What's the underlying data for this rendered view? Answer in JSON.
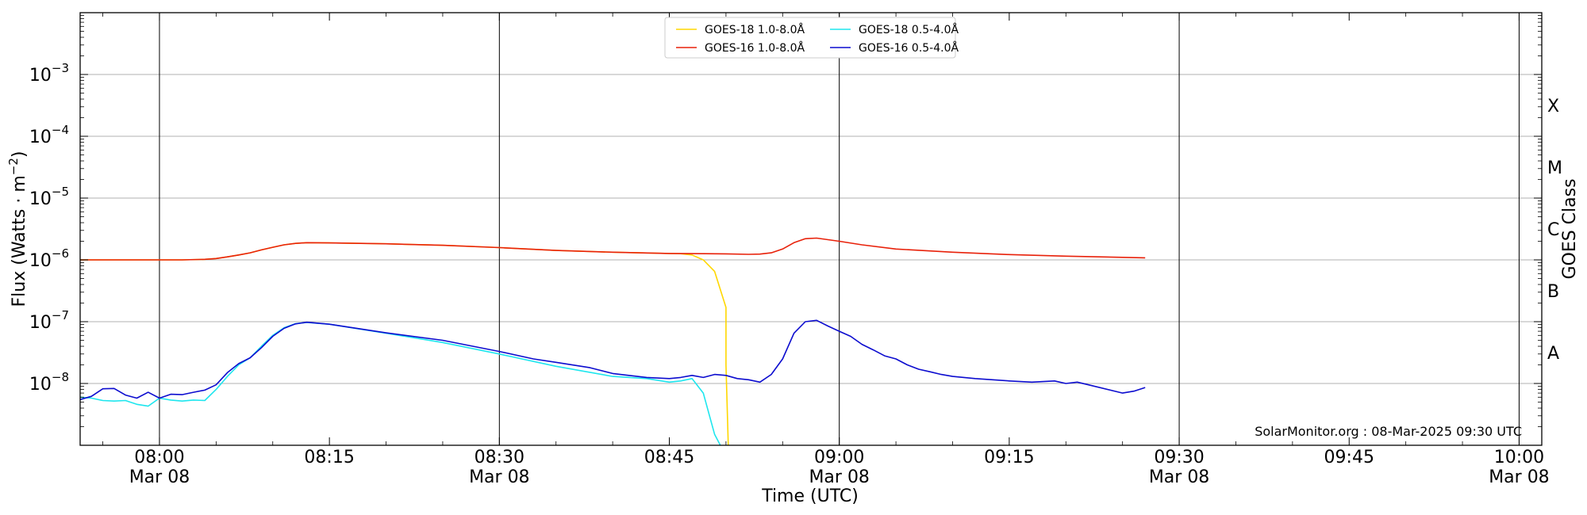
{
  "chart_data": {
    "type": "line",
    "xlabel": "Time (UTC)",
    "ylabel": "Flux (Watts · m",
    "ylabel_sup": "−2",
    "ylabel_close": ")",
    "ylabel_right": "GOES Class",
    "y_scale": "log",
    "ylim": [
      1e-09,
      0.01
    ],
    "xlim": [
      "2025-03-08T07:53",
      "2025-03-08T10:02"
    ],
    "grid": "horizontal gridlines at each decade, vertical lines every 30 minutes",
    "legend_position": "top-center",
    "credit": "SolarMonitor.org : 08-Mar-2025 09:30 UTC",
    "y_ticks": [
      {
        "value": 1e-08,
        "base": "10",
        "exp": "−8"
      },
      {
        "value": 1e-07,
        "base": "10",
        "exp": "−7"
      },
      {
        "value": 1e-06,
        "base": "10",
        "exp": "−6"
      },
      {
        "value": 1e-05,
        "base": "10",
        "exp": "−5"
      },
      {
        "value": 0.0001,
        "base": "10",
        "exp": "−4"
      },
      {
        "value": 0.001,
        "base": "10",
        "exp": "−3"
      }
    ],
    "class_labels": [
      {
        "label": "A",
        "value": 3.16e-08
      },
      {
        "label": "B",
        "value": 3.16e-07
      },
      {
        "label": "C",
        "value": 3.16e-06
      },
      {
        "label": "M",
        "value": 3.16e-05
      },
      {
        "label": "X",
        "value": 0.000316
      }
    ],
    "x_ticks": [
      {
        "time": "08:00",
        "label": "08:00",
        "sublabel": "Mar 08"
      },
      {
        "time": "08:15",
        "label": "08:15",
        "sublabel": ""
      },
      {
        "time": "08:30",
        "label": "08:30",
        "sublabel": "Mar 08"
      },
      {
        "time": "08:45",
        "label": "08:45",
        "sublabel": ""
      },
      {
        "time": "09:00",
        "label": "09:00",
        "sublabel": "Mar 08"
      },
      {
        "time": "09:15",
        "label": "09:15",
        "sublabel": ""
      },
      {
        "time": "09:30",
        "label": "09:30",
        "sublabel": "Mar 08"
      },
      {
        "time": "09:45",
        "label": "09:45",
        "sublabel": ""
      },
      {
        "time": "10:00",
        "label": "10:00",
        "sublabel": "Mar 08"
      }
    ],
    "series": [
      {
        "name": "GOES-18 1.0-8.0Å",
        "color": "#ffd700",
        "x": [
          "07:53",
          "07:57",
          "08:00",
          "08:02",
          "08:04",
          "08:05",
          "08:06",
          "08:07",
          "08:08",
          "08:09",
          "08:10",
          "08:11",
          "08:12",
          "08:13",
          "08:15",
          "08:20",
          "08:25",
          "08:30",
          "08:35",
          "08:40",
          "08:45",
          "08:46",
          "08:47",
          "08:48",
          "08:49",
          "08:50",
          "08:50",
          "08:50.2"
        ],
        "y": [
          1e-06,
          1e-06,
          1e-06,
          1e-06,
          1.02e-06,
          1.05e-06,
          1.12e-06,
          1.2e-06,
          1.3e-06,
          1.45e-06,
          1.6e-06,
          1.75e-06,
          1.85e-06,
          1.9e-06,
          1.88e-06,
          1.82e-06,
          1.72e-06,
          1.58e-06,
          1.42e-06,
          1.33e-06,
          1.27e-06,
          1.26e-06,
          1.2e-06,
          1e-06,
          6.5e-07,
          1.7e-07,
          2e-08,
          1e-09
        ]
      },
      {
        "name": "GOES-16 1.0-8.0Å",
        "color": "#e8210a",
        "x": [
          "07:53",
          "07:57",
          "08:00",
          "08:02",
          "08:04",
          "08:05",
          "08:06",
          "08:07",
          "08:08",
          "08:09",
          "08:10",
          "08:11",
          "08:12",
          "08:13",
          "08:15",
          "08:20",
          "08:25",
          "08:30",
          "08:35",
          "08:40",
          "08:45",
          "08:50",
          "08:52",
          "08:53",
          "08:54",
          "08:55",
          "08:56",
          "08:57",
          "08:58",
          "09:00",
          "09:02",
          "09:05",
          "09:10",
          "09:15",
          "09:20",
          "09:25",
          "09:27"
        ],
        "y": [
          1e-06,
          1e-06,
          1e-06,
          1e-06,
          1.02e-06,
          1.05e-06,
          1.12e-06,
          1.2e-06,
          1.3e-06,
          1.45e-06,
          1.6e-06,
          1.75e-06,
          1.85e-06,
          1.9e-06,
          1.88e-06,
          1.82e-06,
          1.72e-06,
          1.58e-06,
          1.42e-06,
          1.33e-06,
          1.27e-06,
          1.25e-06,
          1.23e-06,
          1.24e-06,
          1.3e-06,
          1.5e-06,
          1.9e-06,
          2.2e-06,
          2.25e-06,
          2e-06,
          1.75e-06,
          1.5e-06,
          1.33e-06,
          1.22e-06,
          1.15e-06,
          1.1e-06,
          1.08e-06
        ]
      },
      {
        "name": "GOES-18 0.5-4.0Å",
        "color": "#1ee6ee",
        "x": [
          "07:53",
          "07:54",
          "07:55",
          "07:56",
          "07:57",
          "07:58",
          "07:59",
          "08:00",
          "08:01",
          "08:02",
          "08:03",
          "08:04",
          "08:05",
          "08:06",
          "08:07",
          "08:08",
          "08:09",
          "08:10",
          "08:11",
          "08:12",
          "08:13",
          "08:15",
          "08:20",
          "08:25",
          "08:30",
          "08:35",
          "08:40",
          "08:43",
          "08:45",
          "08:46",
          "08:47",
          "08:48",
          "08:49",
          "08:49.5"
        ],
        "y": [
          6e-09,
          5.8e-09,
          5.3e-09,
          5.2e-09,
          5.3e-09,
          4.6e-09,
          4.3e-09,
          5.8e-09,
          5.4e-09,
          5.2e-09,
          5.4e-09,
          5.3e-09,
          8e-09,
          1.3e-08,
          2e-08,
          2.6e-08,
          4e-08,
          6e-08,
          8e-08,
          9.3e-08,
          9.7e-08,
          9.1e-08,
          6.5e-08,
          4.6e-08,
          3e-08,
          1.9e-08,
          1.3e-08,
          1.2e-08,
          1.05e-08,
          1.1e-08,
          1.2e-08,
          7e-09,
          1.5e-09,
          1e-09
        ]
      },
      {
        "name": "GOES-16 0.5-4.0Å",
        "color": "#0c0ccf",
        "x": [
          "07:53",
          "07:54",
          "07:55",
          "07:56",
          "07:57",
          "07:58",
          "07:59",
          "08:00",
          "08:01",
          "08:02",
          "08:03",
          "08:04",
          "08:05",
          "08:06",
          "08:07",
          "08:08",
          "08:09",
          "08:10",
          "08:11",
          "08:12",
          "08:13",
          "08:15",
          "08:20",
          "08:25",
          "08:30",
          "08:33",
          "08:35",
          "08:38",
          "08:40",
          "08:43",
          "08:45",
          "08:46",
          "08:47",
          "08:48",
          "08:49",
          "08:50",
          "08:51",
          "08:52",
          "08:53",
          "08:54",
          "08:55",
          "08:56",
          "08:57",
          "08:58",
          "08:59",
          "09:00",
          "09:01",
          "09:02",
          "09:03",
          "09:04",
          "09:05",
          "09:06",
          "09:07",
          "09:08",
          "09:09",
          "09:10",
          "09:12",
          "09:15",
          "09:17",
          "09:19",
          "09:20",
          "09:21",
          "09:22",
          "09:25",
          "09:26",
          "09:27"
        ],
        "y": [
          5.5e-09,
          6.2e-09,
          8.2e-09,
          8.3e-09,
          6.5e-09,
          5.8e-09,
          7.2e-09,
          5.8e-09,
          6.7e-09,
          6.6e-09,
          7.2e-09,
          7.8e-09,
          9.5e-09,
          1.5e-08,
          2.1e-08,
          2.6e-08,
          3.8e-08,
          5.8e-08,
          7.8e-08,
          9.2e-08,
          9.8e-08,
          9.1e-08,
          6.6e-08,
          5e-08,
          3.3e-08,
          2.5e-08,
          2.2e-08,
          1.8e-08,
          1.45e-08,
          1.25e-08,
          1.2e-08,
          1.25e-08,
          1.35e-08,
          1.25e-08,
          1.4e-08,
          1.35e-08,
          1.2e-08,
          1.15e-08,
          1.05e-08,
          1.4e-08,
          2.5e-08,
          6.5e-08,
          1e-07,
          1.05e-07,
          8.5e-08,
          7e-08,
          5.8e-08,
          4.3e-08,
          3.5e-08,
          2.8e-08,
          2.5e-08,
          2e-08,
          1.7e-08,
          1.55e-08,
          1.4e-08,
          1.3e-08,
          1.2e-08,
          1.1e-08,
          1.05e-08,
          1.1e-08,
          1e-08,
          1.05e-08,
          9.5e-09,
          7e-09,
          7.5e-09,
          8.6e-09
        ]
      }
    ]
  }
}
